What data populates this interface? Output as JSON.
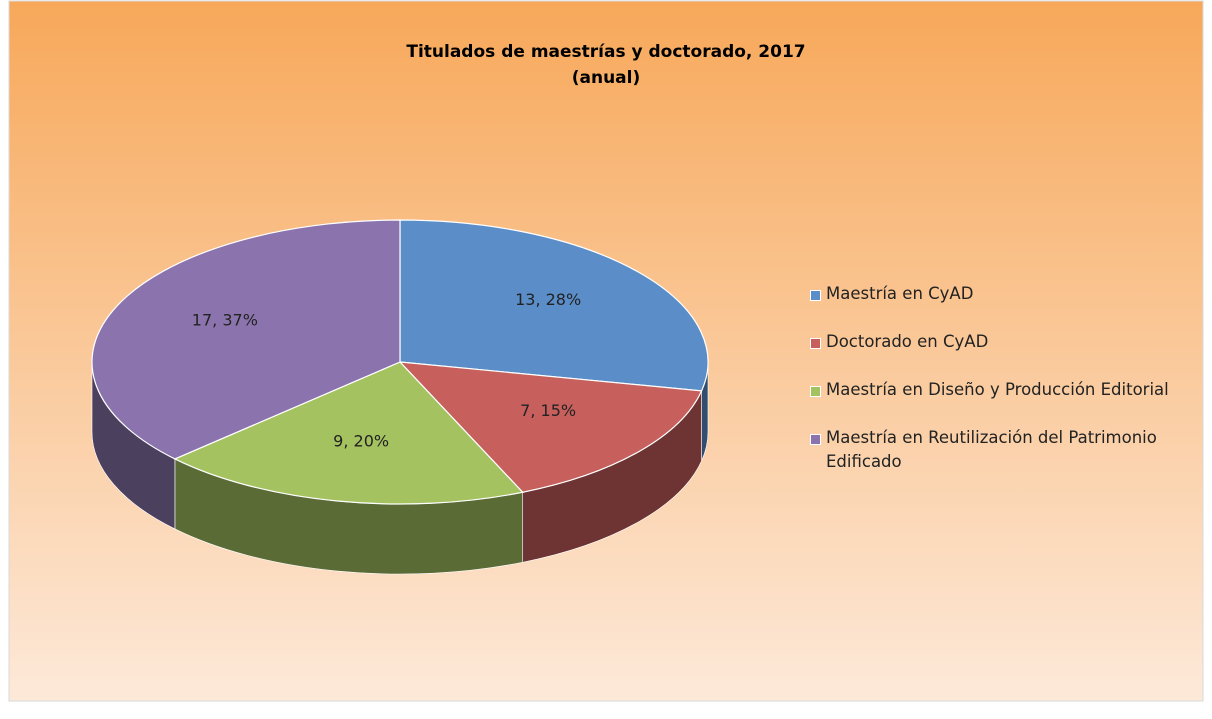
{
  "chart_data": {
    "type": "pie3d",
    "title": "Titulados de maestrías y doctorado, 2017",
    "subtitle": "(anual)",
    "series": [
      {
        "name": "Maestría en CyAD",
        "color": "#5b8ec9",
        "values": [
          13
        ],
        "value_labels": [
          "13, 28%"
        ]
      },
      {
        "name": "Doctorado en CyAD",
        "color": "#c75f5c",
        "values": [
          7
        ],
        "value_labels": [
          "7, 15%"
        ]
      },
      {
        "name": "Maestría en Diseño y Producción Editorial",
        "color": "#a5c261",
        "values": [
          9
        ],
        "value_labels": [
          "9, 20%"
        ]
      },
      {
        "name": "Maestría en Reutilización del Patrimonio Edificado",
        "color": "#8b74ad",
        "values": [
          17
        ],
        "value_labels": [
          "17, 37%"
        ]
      }
    ],
    "legend": "right"
  }
}
